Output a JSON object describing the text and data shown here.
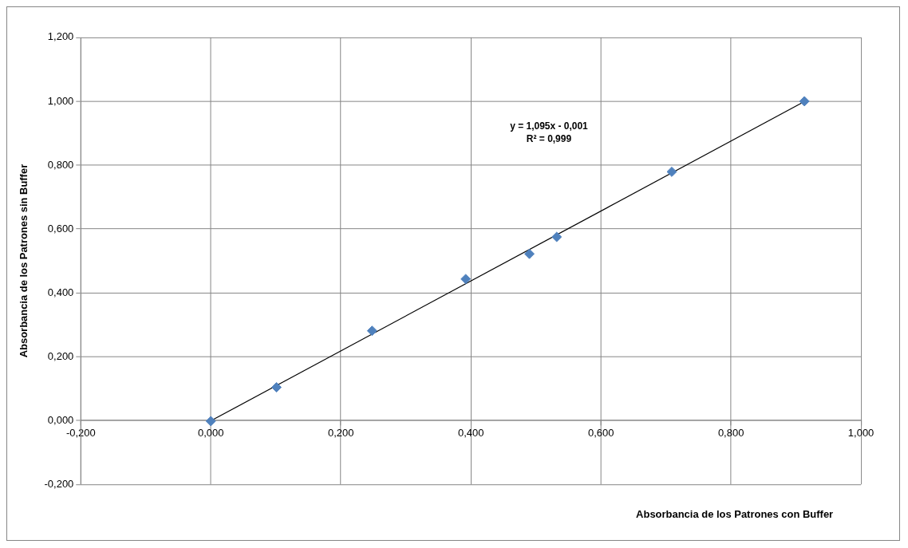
{
  "chart_data": {
    "type": "scatter",
    "xlabel": "Absorbancia de los Patrones con Buffer",
    "ylabel": "Absorbancia de los Patrones sin Buffer",
    "annotations": [
      "y = 1,095x - 0,001",
      "R² = 0,999"
    ],
    "series": [
      {
        "color": "#4f81bd",
        "x": [
          0.0,
          0.101,
          0.248,
          0.392,
          0.49,
          0.532,
          0.709,
          0.913
        ],
        "values": [
          -0.002,
          0.104,
          0.281,
          0.443,
          0.522,
          0.575,
          0.779,
          1.0
        ]
      },
      {
        "type": "line",
        "color": "#000000",
        "x": [
          0.0,
          0.913
        ],
        "values": [
          -0.001,
          0.999
        ],
        "marker": "none"
      }
    ],
    "marker": "diamond",
    "grid": true,
    "legend": false,
    "xlim": [
      -0.2,
      1.0
    ],
    "ylim": [
      -0.2,
      1.2
    ],
    "xticks": [
      {
        "value": -0.2,
        "label": "-0,200"
      },
      {
        "value": 0,
        "label": "0,000"
      },
      {
        "value": 0.2,
        "label": "0,200"
      },
      {
        "value": 0.4,
        "label": "0,400"
      },
      {
        "value": 0.6,
        "label": "0,600"
      },
      {
        "value": 0.8,
        "label": "0,800"
      },
      {
        "value": 1.0,
        "label": "1,000"
      }
    ],
    "yticks": [
      {
        "value": -0.2,
        "label": "-0,200"
      },
      {
        "value": 0,
        "label": "0,000"
      },
      {
        "value": 0.2,
        "label": "0,200"
      },
      {
        "value": 0.4,
        "label": "0,400"
      },
      {
        "value": 0.6,
        "label": "0,600"
      },
      {
        "value": 0.8,
        "label": "0,800"
      },
      {
        "value": 1.0,
        "label": "1,000"
      },
      {
        "value": 1.2,
        "label": "1,200"
      }
    ]
  }
}
